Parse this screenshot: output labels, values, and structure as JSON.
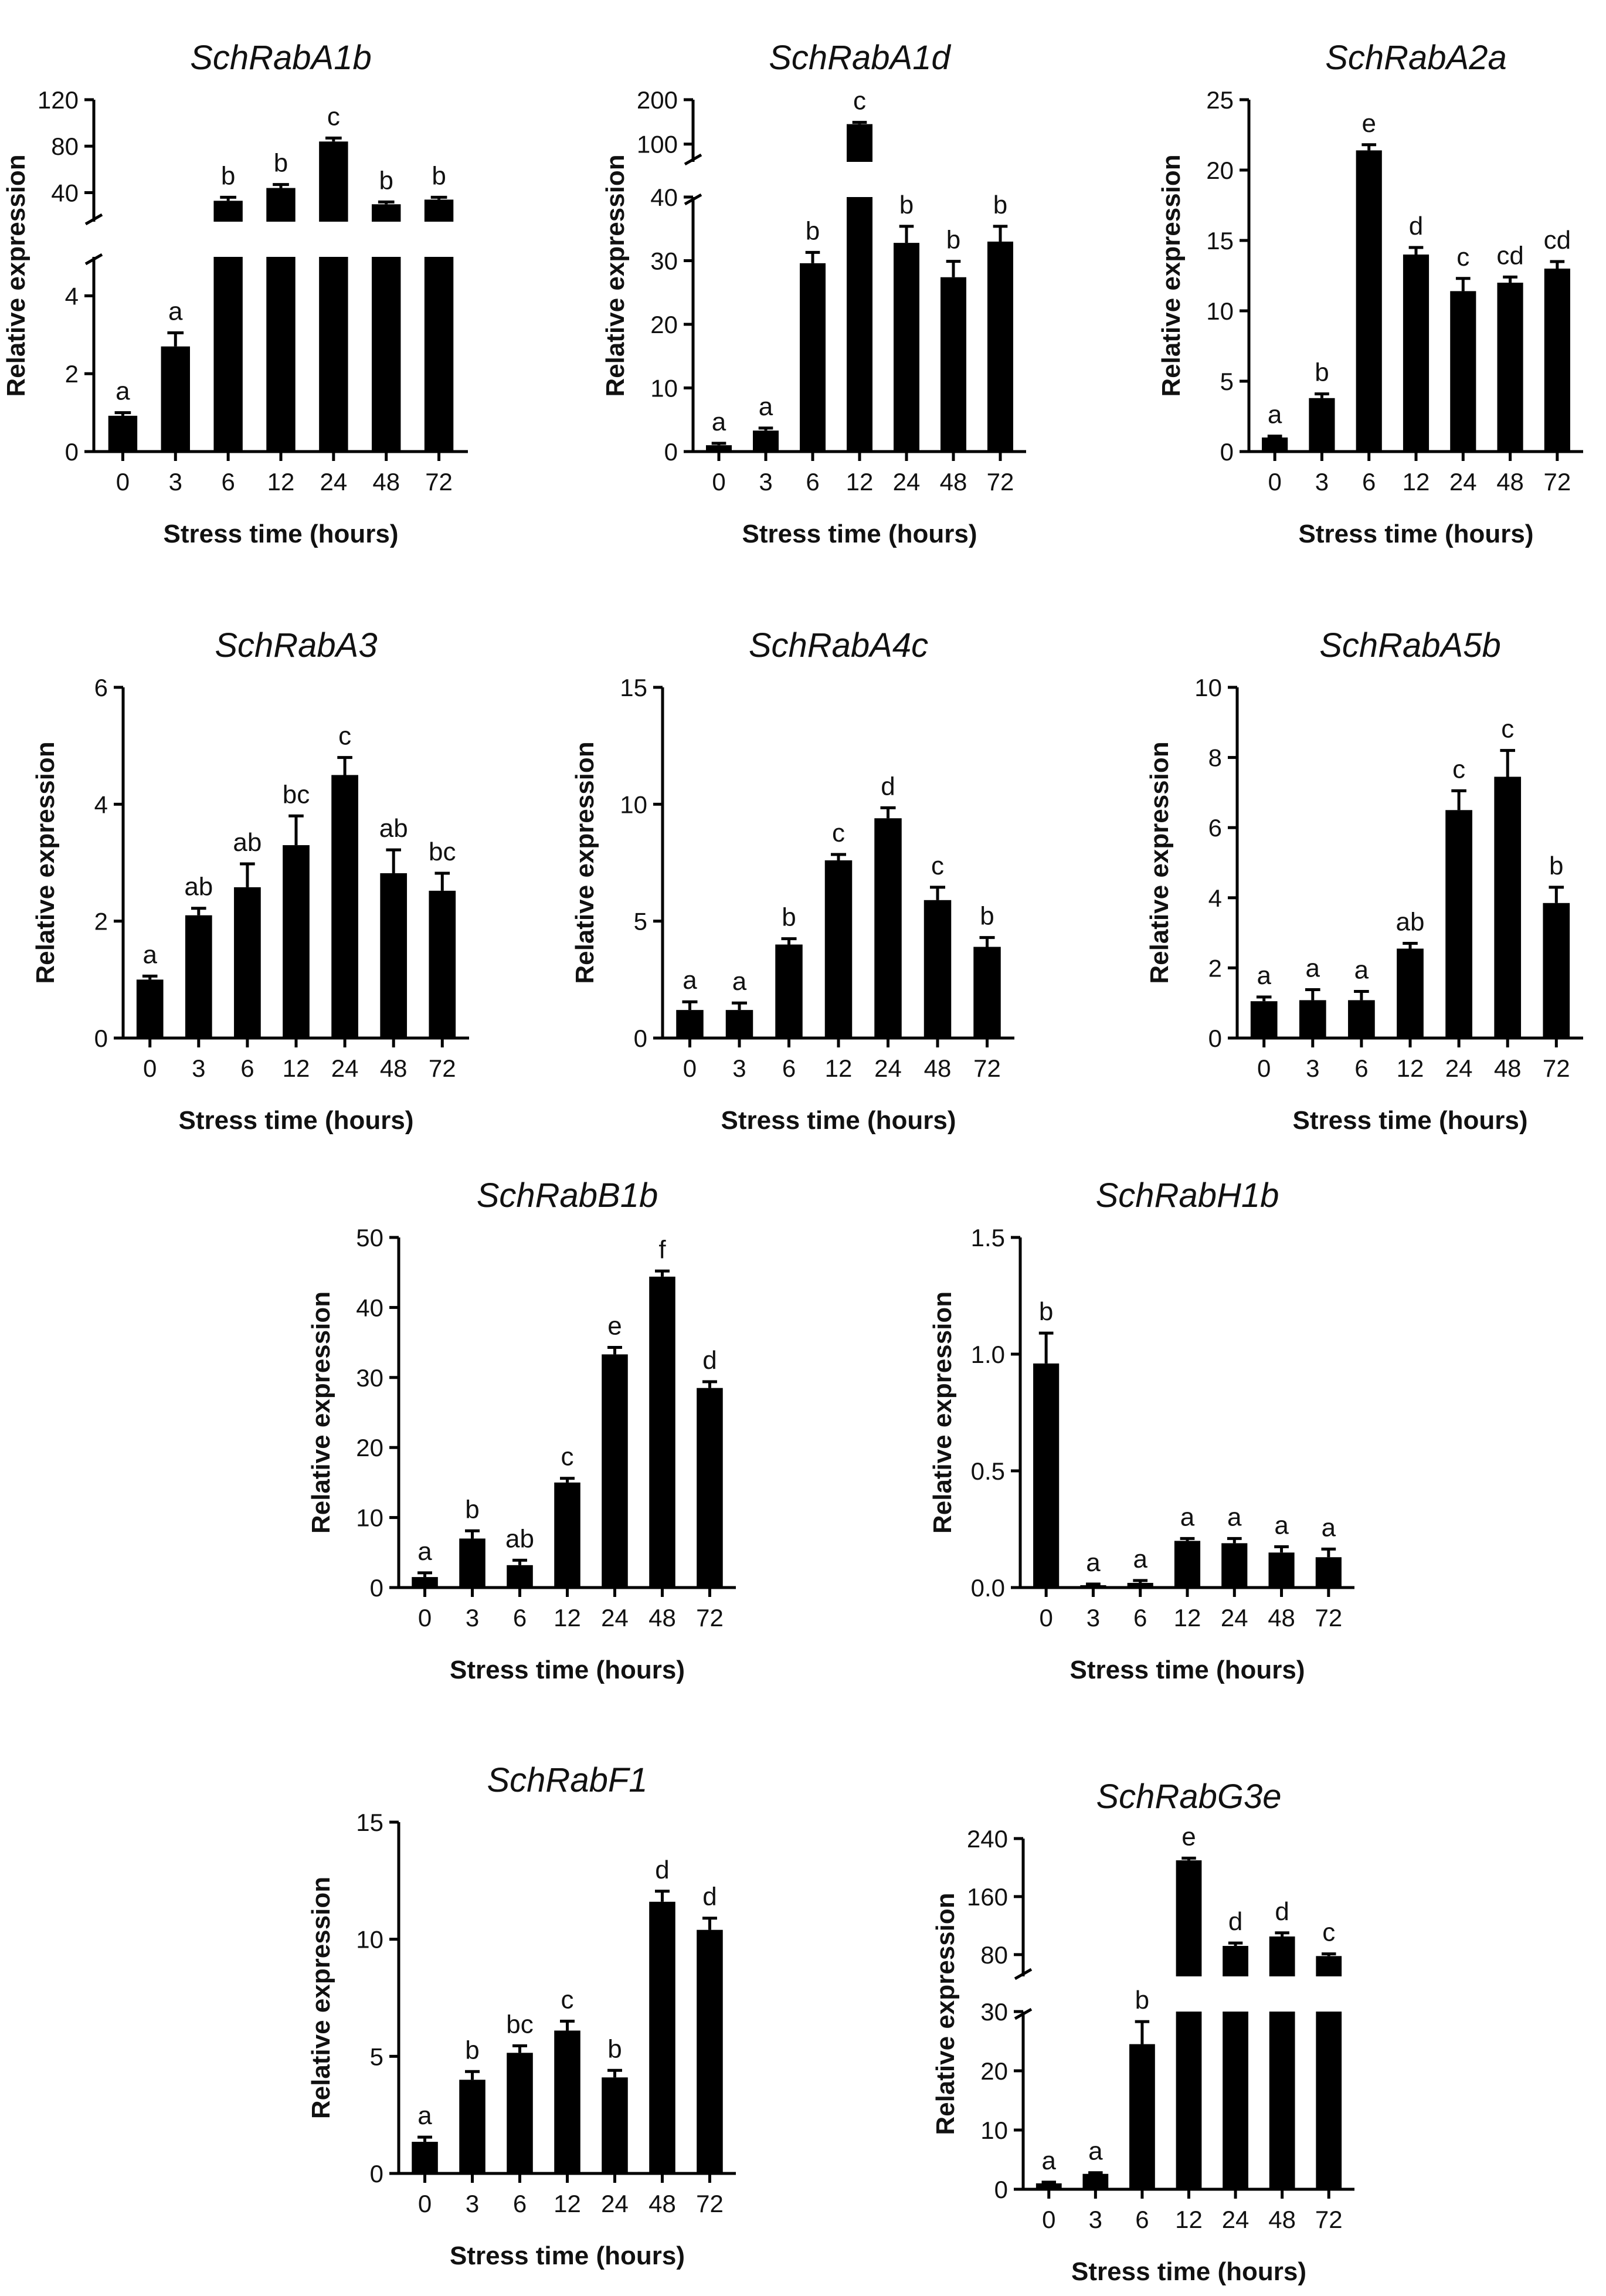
{
  "figure": {
    "x_label": "Stress time (hours)",
    "y_label": "Relative expression",
    "bar_color": "#000000"
  },
  "chart_data": [
    {
      "type": "bar",
      "title": "SchRabA1b",
      "xlabel": "Stress time (hours)",
      "ylabel": "Relative expression",
      "categories": [
        "0",
        "3",
        "6",
        "12",
        "24",
        "48",
        "72"
      ],
      "values": [
        0.92,
        2.7,
        33,
        44,
        84,
        30,
        34
      ],
      "errors": [
        0.08,
        0.35,
        3,
        3,
        3,
        2,
        2
      ],
      "letters": [
        "a",
        "a",
        "b",
        "b",
        "c",
        "b",
        "b"
      ],
      "axis_break": {
        "lower_range": [
          0,
          5
        ],
        "upper_range": [
          15,
          120
        ]
      },
      "yticks_lower": [
        0,
        2,
        4
      ],
      "yticks_upper": [
        40,
        80,
        120
      ]
    },
    {
      "type": "bar",
      "title": "SchRabA1d",
      "xlabel": "Stress time (hours)",
      "ylabel": "Relative expression",
      "categories": [
        "0",
        "3",
        "6",
        "12",
        "24",
        "48",
        "72"
      ],
      "values": [
        1.0,
        3.3,
        29.6,
        145,
        32.8,
        27.4,
        33
      ],
      "errors": [
        0.3,
        0.4,
        1.7,
        4,
        2.6,
        2.5,
        2.4
      ],
      "letters": [
        "a",
        "a",
        "b",
        "c",
        "b",
        "b",
        "b"
      ],
      "axis_break": {
        "lower_range": [
          0,
          40
        ],
        "upper_range": [
          60,
          200
        ]
      },
      "yticks_lower": [
        0,
        10,
        20,
        30,
        40
      ],
      "yticks_upper": [
        100,
        200
      ]
    },
    {
      "type": "bar",
      "title": "SchRabA2a",
      "xlabel": "Stress time (hours)",
      "ylabel": "Relative expression",
      "categories": [
        "0",
        "3",
        "6",
        "12",
        "24",
        "48",
        "72"
      ],
      "values": [
        1.0,
        3.8,
        21.4,
        14.0,
        11.4,
        12.0,
        13.0
      ],
      "errors": [
        0.1,
        0.3,
        0.4,
        0.5,
        0.9,
        0.4,
        0.5
      ],
      "letters": [
        "a",
        "b",
        "e",
        "d",
        "c",
        "cd",
        "cd"
      ],
      "ylim": [
        0,
        25
      ],
      "yticks": [
        0,
        5,
        10,
        15,
        20,
        25
      ]
    },
    {
      "type": "bar",
      "title": "SchRabA3",
      "xlabel": "Stress time (hours)",
      "ylabel": "Relative expression",
      "categories": [
        "0",
        "3",
        "6",
        "12",
        "24",
        "48",
        "72"
      ],
      "values": [
        1.0,
        2.1,
        2.58,
        3.3,
        4.5,
        2.82,
        2.52
      ],
      "errors": [
        0.06,
        0.12,
        0.4,
        0.5,
        0.3,
        0.4,
        0.3
      ],
      "letters": [
        "a",
        "ab",
        "ab",
        "bc",
        "c",
        "ab",
        "bc"
      ],
      "ylim": [
        0,
        6
      ],
      "yticks": [
        0,
        2,
        4,
        6
      ]
    },
    {
      "type": "bar",
      "title": "SchRabA4c",
      "xlabel": "Stress time (hours)",
      "ylabel": "Relative expression",
      "categories": [
        "0",
        "3",
        "6",
        "12",
        "24",
        "48",
        "72"
      ],
      "values": [
        1.2,
        1.2,
        4.0,
        7.6,
        9.4,
        5.9,
        3.9
      ],
      "errors": [
        0.35,
        0.3,
        0.25,
        0.25,
        0.45,
        0.55,
        0.4
      ],
      "letters": [
        "a",
        "a",
        "b",
        "c",
        "d",
        "c",
        "b"
      ],
      "ylim": [
        0,
        15
      ],
      "yticks": [
        0,
        5,
        10,
        15
      ]
    },
    {
      "type": "bar",
      "title": "SchRabA5b",
      "xlabel": "Stress time (hours)",
      "ylabel": "Relative expression",
      "categories": [
        "0",
        "3",
        "6",
        "12",
        "24",
        "48",
        "72"
      ],
      "values": [
        1.05,
        1.08,
        1.08,
        2.55,
        6.5,
        7.45,
        3.85
      ],
      "errors": [
        0.12,
        0.3,
        0.25,
        0.15,
        0.55,
        0.75,
        0.45
      ],
      "letters": [
        "a",
        "a",
        "a",
        "ab",
        "c",
        "c",
        "b"
      ],
      "ylim": [
        0,
        10
      ],
      "yticks": [
        0,
        2,
        4,
        6,
        8,
        10
      ]
    },
    {
      "type": "bar",
      "title": "SchRabB1b",
      "xlabel": "Stress time (hours)",
      "ylabel": "Relative expression",
      "categories": [
        "0",
        "3",
        "6",
        "12",
        "24",
        "48",
        "72"
      ],
      "values": [
        1.5,
        7.0,
        3.2,
        15.0,
        33.3,
        44.4,
        28.5
      ],
      "errors": [
        0.6,
        1.1,
        0.7,
        0.6,
        1.0,
        0.8,
        0.9
      ],
      "letters": [
        "a",
        "b",
        "ab",
        "c",
        "e",
        "f",
        "d"
      ],
      "ylim": [
        0,
        50
      ],
      "yticks": [
        0,
        10,
        20,
        30,
        40,
        50
      ]
    },
    {
      "type": "bar",
      "title": "SchRabH1b",
      "xlabel": "Stress time (hours)",
      "ylabel": "Relative expression",
      "categories": [
        "0",
        "3",
        "6",
        "12",
        "24",
        "48",
        "72"
      ],
      "values": [
        0.96,
        0.01,
        0.02,
        0.2,
        0.19,
        0.15,
        0.13
      ],
      "errors": [
        0.13,
        0.005,
        0.01,
        0.01,
        0.02,
        0.025,
        0.035
      ],
      "letters": [
        "b",
        "a",
        "a",
        "a",
        "a",
        "a",
        "a"
      ],
      "ylim": [
        0,
        1.5
      ],
      "yticks": [
        0,
        0.5,
        1,
        1.5
      ],
      "ytick_labels": [
        "0.0",
        "0.5",
        "1.0",
        "1.5"
      ]
    },
    {
      "type": "bar",
      "title": "SchRabF1",
      "xlabel": "Stress time (hours)",
      "ylabel": "Relative expression",
      "categories": [
        "0",
        "3",
        "6",
        "12",
        "24",
        "48",
        "72"
      ],
      "values": [
        1.35,
        4.0,
        5.15,
        6.1,
        4.1,
        11.6,
        10.4
      ],
      "errors": [
        0.2,
        0.35,
        0.3,
        0.4,
        0.3,
        0.45,
        0.5
      ],
      "letters": [
        "a",
        "b",
        "bc",
        "c",
        "b",
        "d",
        "d"
      ],
      "ylim": [
        0,
        15
      ],
      "yticks": [
        0,
        5,
        10,
        15
      ]
    },
    {
      "type": "bar",
      "title": "SchRabG3e",
      "xlabel": "Stress time (hours)",
      "ylabel": "Relative expression",
      "categories": [
        "0",
        "3",
        "6",
        "12",
        "24",
        "48",
        "72"
      ],
      "values": [
        1.0,
        2.6,
        24.5,
        210,
        92,
        105,
        78
      ],
      "errors": [
        0.2,
        0.2,
        3.8,
        3,
        4,
        5,
        3
      ],
      "letters": [
        "a",
        "a",
        "b",
        "e",
        "d",
        "d",
        "c"
      ],
      "axis_break": {
        "lower_range": [
          0,
          30
        ],
        "upper_range": [
          50,
          240
        ]
      },
      "yticks_lower": [
        0,
        10,
        20,
        30
      ],
      "yticks_upper": [
        80,
        160,
        240
      ]
    }
  ]
}
